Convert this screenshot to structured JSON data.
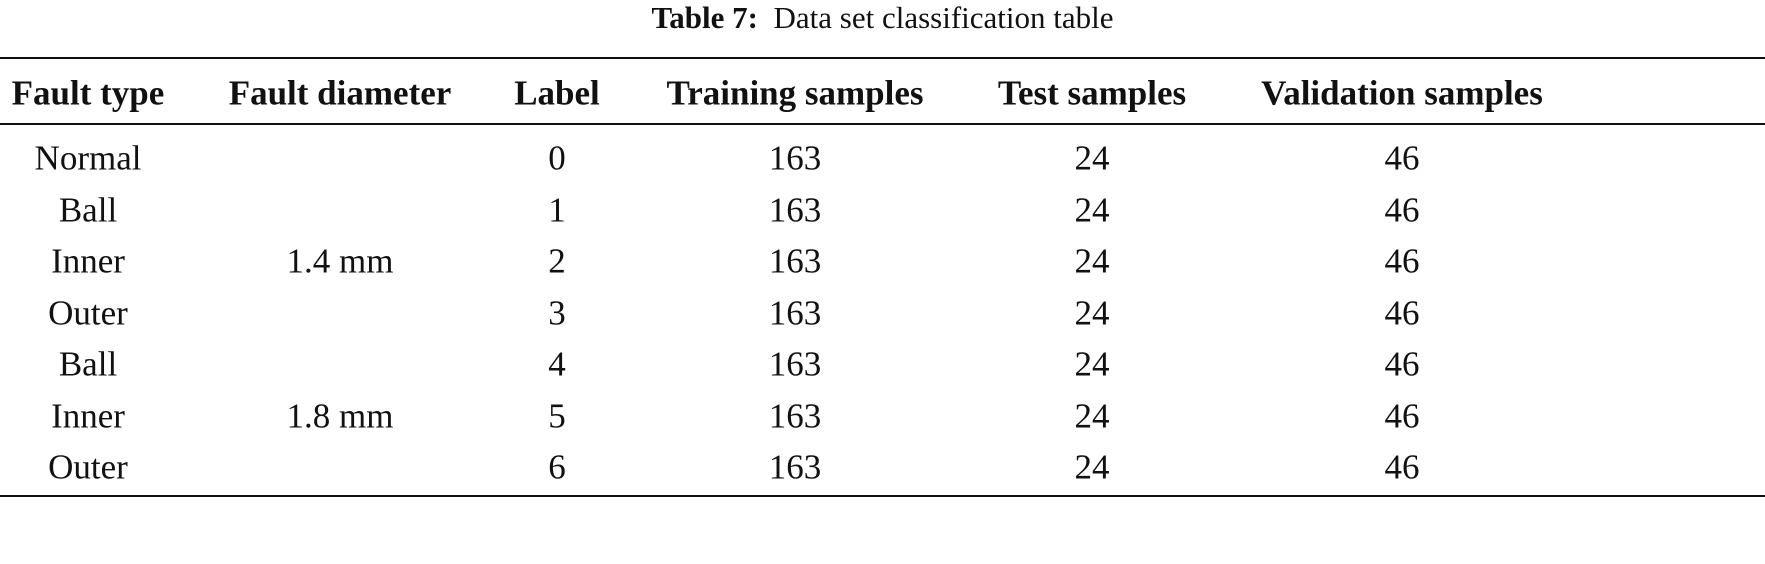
{
  "caption": {
    "label": "Table 7:",
    "text": "Data set classification table"
  },
  "table": {
    "header": [
      "Fault type",
      "Fault diameter",
      "Label",
      "Training samples",
      "Test samples",
      "Validation samples"
    ],
    "rows": [
      [
        "Normal",
        0,
        163,
        24,
        46
      ],
      [
        "Ball",
        1,
        163,
        24,
        46
      ],
      [
        "Inner",
        2,
        163,
        24,
        46
      ],
      [
        "Outer",
        3,
        163,
        24,
        46
      ],
      [
        "Ball",
        4,
        163,
        24,
        46
      ],
      [
        "Inner",
        5,
        163,
        24,
        46
      ],
      [
        "Outer",
        6,
        163,
        24,
        46
      ]
    ],
    "diameters": [
      {
        "text": "1.4 mm",
        "first_row": 1,
        "row_count": 3
      },
      {
        "text": "1.8 mm",
        "first_row": 4,
        "row_count": 3
      }
    ]
  }
}
